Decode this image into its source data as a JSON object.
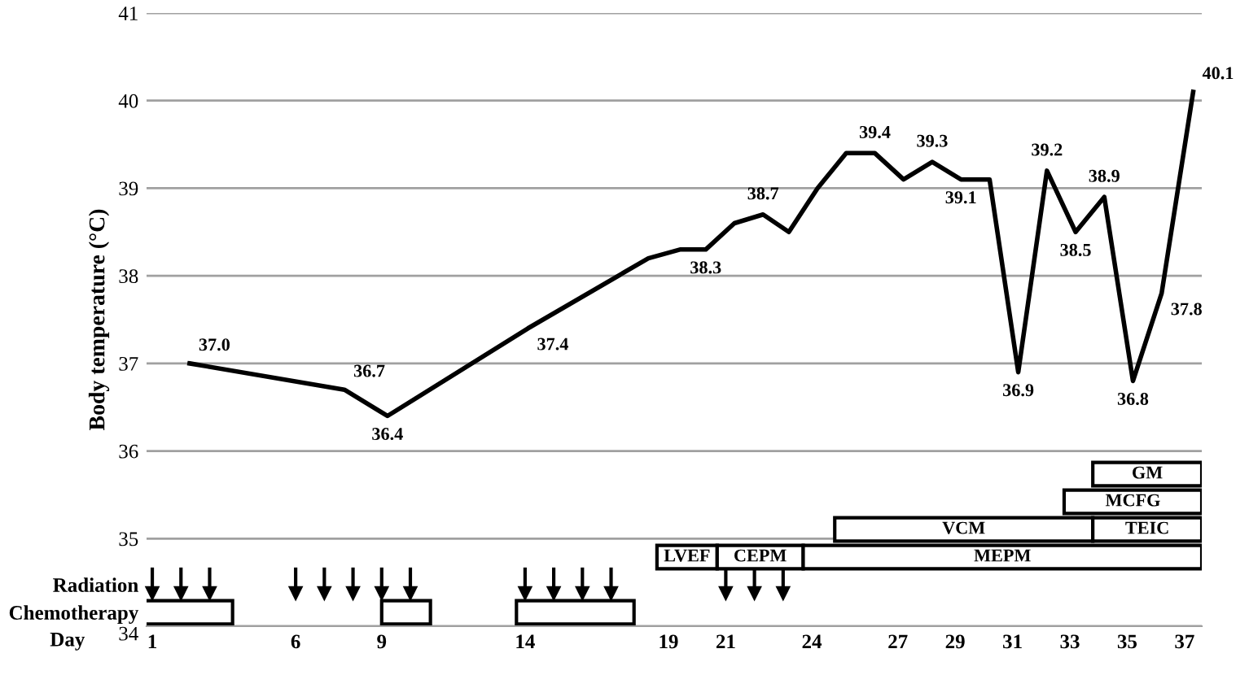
{
  "chart_data": [
    {
      "type": "line",
      "ylabel": "Body temperature (°C)",
      "xlim": [
        0.8,
        37.6
      ],
      "ylim": [
        34,
        41
      ],
      "yticks": [
        34,
        35,
        36,
        37,
        38,
        39,
        40,
        41
      ],
      "grid": "y",
      "tick_labels": "y",
      "series": [
        {
          "color": "#000000",
          "x": [
            2.3,
            7.7,
            9.2,
            14.1,
            18.3,
            19.4,
            20.3,
            21.3,
            22.3,
            23.2,
            24.2,
            25.2,
            26.2,
            27.2,
            28.2,
            29.2,
            30.2,
            31.2,
            32.2,
            33.2,
            34.2,
            35.2,
            36.2,
            37.3
          ],
          "values": [
            37.0,
            36.7,
            36.4,
            37.4,
            38.2,
            38.3,
            38.3,
            38.6,
            38.7,
            38.5,
            39.0,
            39.4,
            39.4,
            39.1,
            39.3,
            39.1,
            39.1,
            36.9,
            39.2,
            38.5,
            38.9,
            36.8,
            37.8,
            40.1
          ],
          "value_labels": [
            "37.0",
            "36.7",
            "36.4",
            "37.4",
            null,
            null,
            "38.3",
            null,
            "38.7",
            null,
            null,
            null,
            "39.4",
            null,
            "39.3",
            "39.1",
            null,
            "36.9",
            "39.2",
            "38.5",
            "38.9",
            "36.8",
            "37.8",
            "40.1"
          ]
        },
        {
          "type": "scatter",
          "marker": "triangle",
          "color": "#000000",
          "x": [
            1,
            2,
            3,
            6,
            7,
            8,
            9,
            10,
            14,
            15,
            16,
            17,
            21,
            22,
            23
          ],
          "values": [
            34.37,
            34.37,
            34.37,
            34.37,
            34.37,
            34.37,
            34.37,
            34.37,
            34.37,
            34.37,
            34.37,
            34.37,
            34.37,
            34.37,
            34.37
          ]
        }
      ]
    },
    {
      "type": "bar",
      "orientation": "horizontal",
      "xlabel": "Day",
      "xlim": [
        0.8,
        37.6
      ],
      "xticks": [
        1,
        6,
        9,
        14,
        19,
        21,
        24,
        27,
        29,
        31,
        33,
        35,
        37
      ],
      "categories": [
        null,
        null,
        null,
        null,
        "Radiation",
        "Chemotherapy"
      ],
      "series": [
        {
          "name": "GM",
          "color": "#ffffff",
          "base": [
            33.8,
            null,
            null,
            null,
            null,
            null
          ],
          "values": [
            3.8,
            null,
            null,
            null,
            null,
            null
          ]
        },
        {
          "name": "MCFG",
          "color": "#ffffff",
          "base": [
            null,
            32.8,
            null,
            null,
            null,
            null
          ],
          "values": [
            null,
            4.8,
            null,
            null,
            null,
            null
          ]
        },
        {
          "name": "VCM",
          "color": "#ffffff",
          "base": [
            null,
            null,
            24.8,
            null,
            null,
            null
          ],
          "values": [
            null,
            null,
            9.0,
            null,
            null,
            null
          ]
        },
        {
          "name": "TEIC",
          "color": "#ffffff",
          "base": [
            null,
            null,
            33.8,
            null,
            null,
            null
          ],
          "values": [
            null,
            null,
            3.8,
            null,
            null,
            null
          ]
        },
        {
          "name": "LVEF",
          "color": "#ffffff",
          "base": [
            null,
            null,
            null,
            18.6,
            null,
            null
          ],
          "values": [
            null,
            null,
            null,
            2.1,
            null,
            null
          ]
        },
        {
          "name": "CEPM",
          "color": "#ffffff",
          "base": [
            null,
            null,
            null,
            20.7,
            null,
            null
          ],
          "values": [
            null,
            null,
            null,
            3.0,
            null,
            null
          ]
        },
        {
          "name": "MEPM",
          "color": "#ffffff",
          "base": [
            null,
            null,
            null,
            23.7,
            null,
            null
          ],
          "values": [
            null,
            null,
            null,
            13.9,
            null,
            null
          ]
        },
        {
          "color": "#ffffff",
          "base": [
            null,
            null,
            null,
            null,
            null,
            0.7
          ],
          "values": [
            null,
            null,
            null,
            null,
            null,
            3.1
          ]
        },
        {
          "color": "#ffffff",
          "base": [
            null,
            null,
            null,
            null,
            null,
            9.0
          ],
          "values": [
            null,
            null,
            null,
            null,
            null,
            1.7
          ]
        },
        {
          "color": "#ffffff",
          "base": [
            null,
            null,
            null,
            null,
            null,
            13.7
          ],
          "values": [
            null,
            null,
            null,
            null,
            null,
            4.1
          ]
        }
      ]
    }
  ]
}
